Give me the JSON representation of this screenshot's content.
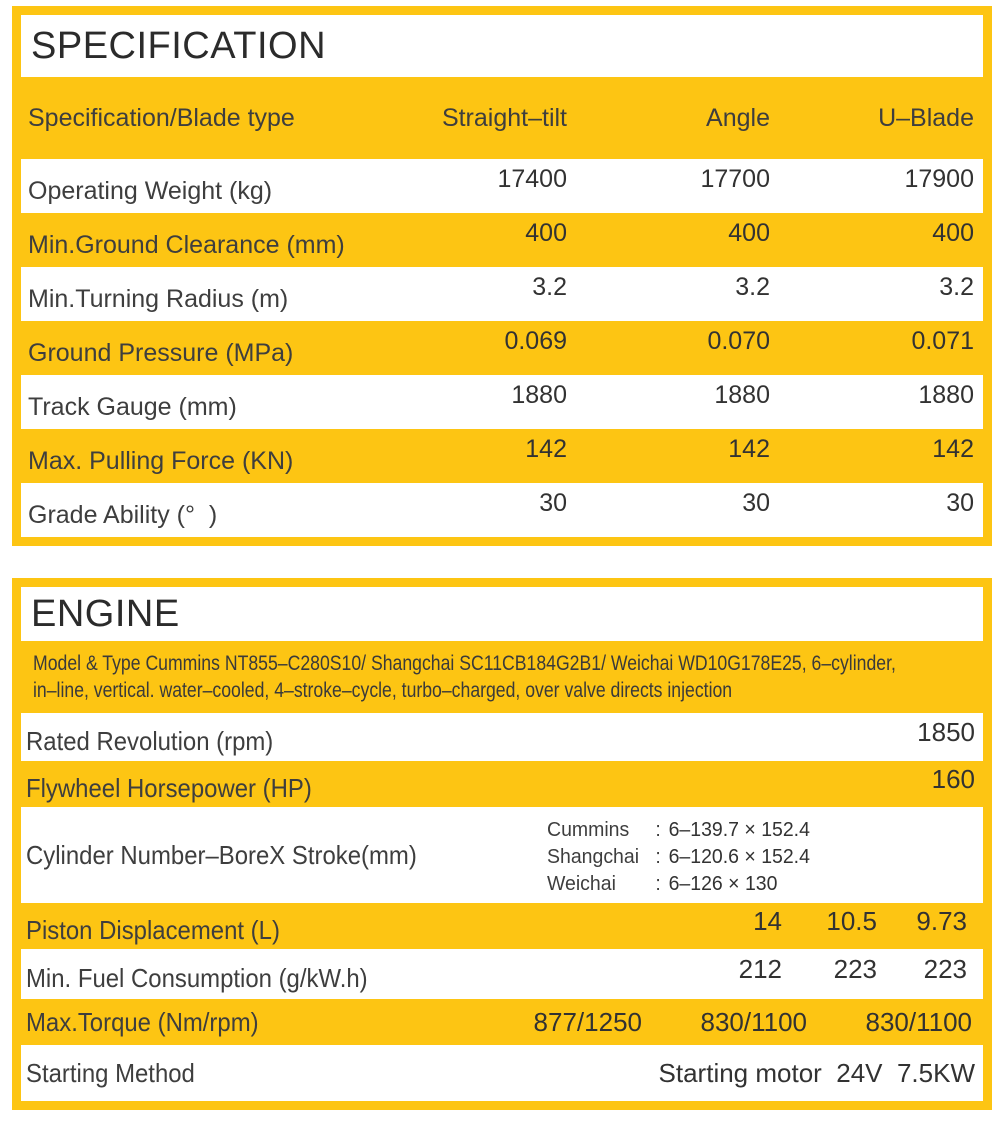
{
  "colors": {
    "accent": "#FDC513",
    "title_text": "#2b2b2b",
    "label_text": "#3e3e3e",
    "value_text": "#323232"
  },
  "specification": {
    "title": "SPECIFICATION",
    "header": {
      "label": "Specification/Blade type",
      "columns": [
        "Straight–tilt",
        "Angle",
        "U–Blade"
      ]
    },
    "rows": [
      {
        "label": "Operating Weight (kg)",
        "values": [
          "17400",
          "17700",
          "17900"
        ]
      },
      {
        "label": "Min.Ground Clearance (mm)",
        "values": [
          "400",
          "400",
          "400"
        ]
      },
      {
        "label": "Min.Turning Radius (m)",
        "values": [
          "3.2",
          "3.2",
          "3.2"
        ]
      },
      {
        "label": "Ground Pressure (MPa)",
        "values": [
          "0.069",
          "0.070",
          "0.071"
        ]
      },
      {
        "label": "Track Gauge (mm)",
        "values": [
          "1880",
          "1880",
          "1880"
        ]
      },
      {
        "label": "Max. Pulling Force (KN)",
        "values": [
          "142",
          "142",
          "142"
        ]
      },
      {
        "label": "Grade Ability (°  )",
        "values": [
          "30",
          "30",
          "30"
        ]
      }
    ]
  },
  "engine": {
    "title": "ENGINE",
    "model_line1": "Model & Type Cummins NT855–C280S10/ Shangchai SC11CB184G2B1/ Weichai WD10G178E25, 6–cylinder,",
    "model_line2": "in–line, vertical. water–cooled, 4–stroke–cycle, turbo–charged, over valve directs injection",
    "rated_revolution": {
      "label": "Rated Revolution (rpm)",
      "value": "1850"
    },
    "flywheel_horsepower": {
      "label": "Flywheel Horsepower (HP)",
      "value": "160"
    },
    "cylinder": {
      "label": "Cylinder Number–BoreX Stroke(mm)",
      "entries": [
        {
          "brand": "Cummins",
          "colon": ":",
          "value": "6–139.7 × 152.4"
        },
        {
          "brand": "Shangchai",
          "colon": ":",
          "value": "6–120.6 × 152.4"
        },
        {
          "brand": "Weichai",
          "colon": ":",
          "value": "6–126 × 130"
        }
      ]
    },
    "piston_displacement": {
      "label": "Piston Displacement (L)",
      "values": [
        "14",
        "10.5",
        "9.73"
      ]
    },
    "fuel_consumption": {
      "label": "Min. Fuel Consumption (g/kW.h)",
      "values": [
        "212",
        "223",
        "223"
      ]
    },
    "max_torque": {
      "label": "Max.Torque (Nm/rpm)",
      "values": [
        "877/1250",
        "830/1100",
        "830/1100"
      ]
    },
    "starting_method": {
      "label": "Starting Method",
      "value": "Starting motor  24V  7.5KW"
    }
  }
}
